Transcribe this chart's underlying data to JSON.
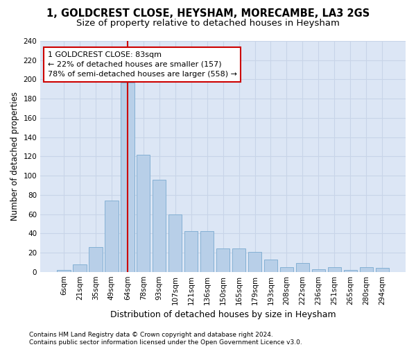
{
  "title": "1, GOLDCREST CLOSE, HEYSHAM, MORECAMBE, LA3 2GS",
  "subtitle": "Size of property relative to detached houses in Heysham",
  "xlabel": "Distribution of detached houses by size in Heysham",
  "ylabel": "Number of detached properties",
  "categories": [
    "6sqm",
    "21sqm",
    "35sqm",
    "49sqm",
    "64sqm",
    "78sqm",
    "93sqm",
    "107sqm",
    "121sqm",
    "136sqm",
    "150sqm",
    "165sqm",
    "179sqm",
    "193sqm",
    "208sqm",
    "222sqm",
    "236sqm",
    "251sqm",
    "265sqm",
    "280sqm",
    "294sqm"
  ],
  "values": [
    2,
    8,
    26,
    74,
    197,
    122,
    96,
    60,
    42,
    42,
    24,
    24,
    21,
    13,
    5,
    9,
    3,
    5,
    2,
    5,
    4
  ],
  "bar_color": "#b8cfe8",
  "bar_edge_color": "#7aaad0",
  "grid_color": "#c8d4e8",
  "background_color": "#dce6f5",
  "vline_x_index": 4,
  "vline_color": "#cc0000",
  "annotation_text": "1 GOLDCREST CLOSE: 83sqm\n← 22% of detached houses are smaller (157)\n78% of semi-detached houses are larger (558) →",
  "annotation_box_facecolor": "#ffffff",
  "annotation_box_edgecolor": "#cc0000",
  "footer_text": "Contains HM Land Registry data © Crown copyright and database right 2024.\nContains public sector information licensed under the Open Government Licence v3.0.",
  "ylim": [
    0,
    240
  ],
  "yticks": [
    0,
    20,
    40,
    60,
    80,
    100,
    120,
    140,
    160,
    180,
    200,
    220,
    240
  ],
  "title_fontsize": 10.5,
  "subtitle_fontsize": 9.5,
  "xlabel_fontsize": 9,
  "ylabel_fontsize": 8.5,
  "tick_fontsize": 7.5,
  "annotation_fontsize": 8,
  "footer_fontsize": 6.5
}
